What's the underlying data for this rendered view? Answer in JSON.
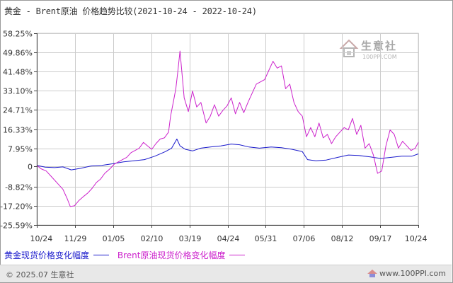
{
  "title": "黄金 - Brent原油 价格趋势比较(2021-10-24 - 2022-10-24)",
  "watermark": {
    "name": "生意社",
    "url": "100PPI.COM"
  },
  "legend": [
    {
      "label": "黄金现货价格变化幅度",
      "color": "#1a1acc"
    },
    {
      "label": "Brent原油现货价格变化幅度",
      "color": "#cc22cc"
    }
  ],
  "footer": {
    "copyright": "© 2025.07 生意社",
    "site": "www.100PPI.com"
  },
  "colors": {
    "gold": "#1a1acc",
    "brent": "#cc22cc",
    "grid": "#cccccc",
    "axis": "#444444"
  },
  "chart_data": {
    "type": "line",
    "x_start": "2021-10-24",
    "x_end": "2022-10-24",
    "x_tick_labels": [
      "10/24",
      "11/29",
      "01/05",
      "02/10",
      "03/19",
      "04/24",
      "05/31",
      "07/06",
      "08/12",
      "09/17",
      "10/24"
    ],
    "y_ticks": [
      58.25,
      49.86,
      41.48,
      33.1,
      24.71,
      16.33,
      7.95,
      0,
      -8.82,
      -17.2,
      -25.59
    ],
    "y_tick_labels": [
      "58.25%",
      "49.86%",
      "41.48%",
      "33.10%",
      "24.71%",
      "16.33%",
      "7.95%",
      "0",
      "-8.82%",
      "-17.20%",
      "-25.59%"
    ],
    "ylim": [
      -25.59,
      58.25
    ],
    "ylabel": "",
    "xlabel": "",
    "series": [
      {
        "name": "黄金现货价格变化幅度",
        "x": [
          "2021-10-24",
          "2021-11-01",
          "2021-11-10",
          "2021-11-18",
          "2021-11-26",
          "2021-12-05",
          "2021-12-15",
          "2021-12-25",
          "2022-01-05",
          "2022-01-15",
          "2022-01-25",
          "2022-02-04",
          "2022-02-14",
          "2022-02-24",
          "2022-03-02",
          "2022-03-07",
          "2022-03-10",
          "2022-03-15",
          "2022-03-22",
          "2022-03-30",
          "2022-04-08",
          "2022-04-18",
          "2022-04-28",
          "2022-05-06",
          "2022-05-15",
          "2022-05-25",
          "2022-06-05",
          "2022-06-15",
          "2022-06-25",
          "2022-07-05",
          "2022-07-10",
          "2022-07-18",
          "2022-07-28",
          "2022-08-08",
          "2022-08-18",
          "2022-08-28",
          "2022-09-08",
          "2022-09-18",
          "2022-09-28",
          "2022-10-08",
          "2022-10-18",
          "2022-10-24"
        ],
        "y": [
          0.5,
          -0.3,
          -0.5,
          -0.2,
          -1.5,
          -0.8,
          0.2,
          0.5,
          1.2,
          2.0,
          2.5,
          3.0,
          4.5,
          6.5,
          8.0,
          12.0,
          9.0,
          7.5,
          6.8,
          8.0,
          8.5,
          9.0,
          9.8,
          9.5,
          8.5,
          8.0,
          8.5,
          8.2,
          7.5,
          6.5,
          3.0,
          2.5,
          2.8,
          4.0,
          5.0,
          4.8,
          4.2,
          3.5,
          4.0,
          4.5,
          4.5,
          5.5
        ]
      },
      {
        "name": "Brent原油现货价格变化幅度",
        "x": [
          "2021-10-24",
          "2021-10-28",
          "2021-11-02",
          "2021-11-08",
          "2021-11-14",
          "2021-11-18",
          "2021-11-22",
          "2021-11-25",
          "2021-11-29",
          "2021-12-03",
          "2021-12-08",
          "2021-12-12",
          "2021-12-16",
          "2021-12-20",
          "2021-12-24",
          "2021-12-28",
          "2022-01-02",
          "2022-01-06",
          "2022-01-10",
          "2022-01-14",
          "2022-01-18",
          "2022-01-22",
          "2022-01-26",
          "2022-01-30",
          "2022-02-03",
          "2022-02-07",
          "2022-02-11",
          "2022-02-15",
          "2022-02-19",
          "2022-02-23",
          "2022-02-27",
          "2022-03-01",
          "2022-03-04",
          "2022-03-06",
          "2022-03-08",
          "2022-03-10",
          "2022-03-14",
          "2022-03-18",
          "2022-03-22",
          "2022-03-26",
          "2022-03-30",
          "2022-04-04",
          "2022-04-08",
          "2022-04-12",
          "2022-04-16",
          "2022-04-20",
          "2022-04-24",
          "2022-04-28",
          "2022-05-02",
          "2022-05-06",
          "2022-05-10",
          "2022-05-14",
          "2022-05-18",
          "2022-05-22",
          "2022-05-26",
          "2022-05-30",
          "2022-06-03",
          "2022-06-07",
          "2022-06-11",
          "2022-06-15",
          "2022-06-19",
          "2022-06-23",
          "2022-06-27",
          "2022-07-01",
          "2022-07-05",
          "2022-07-09",
          "2022-07-13",
          "2022-07-17",
          "2022-07-21",
          "2022-07-25",
          "2022-07-29",
          "2022-08-02",
          "2022-08-06",
          "2022-08-10",
          "2022-08-14",
          "2022-08-18",
          "2022-08-22",
          "2022-08-26",
          "2022-08-30",
          "2022-09-03",
          "2022-09-07",
          "2022-09-11",
          "2022-09-15",
          "2022-09-19",
          "2022-09-23",
          "2022-09-27",
          "2022-10-01",
          "2022-10-05",
          "2022-10-09",
          "2022-10-13",
          "2022-10-17",
          "2022-10-21",
          "2022-10-24"
        ],
        "y": [
          0.5,
          -1.0,
          -2.0,
          -5.0,
          -8.0,
          -10.0,
          -14.0,
          -17.5,
          -17.2,
          -15.0,
          -13.0,
          -11.5,
          -9.5,
          -7.0,
          -5.5,
          -3.0,
          -1.0,
          1.0,
          2.0,
          3.0,
          4.0,
          6.0,
          7.0,
          8.0,
          10.5,
          9.0,
          7.5,
          10.0,
          12.0,
          12.5,
          15.0,
          22.0,
          29.0,
          34.0,
          42.0,
          50.5,
          30.0,
          24.0,
          33.0,
          26.0,
          28.0,
          19.0,
          22.0,
          27.0,
          22.0,
          24.5,
          26.5,
          30.0,
          23.0,
          28.0,
          23.5,
          28.0,
          32.0,
          36.0,
          37.0,
          38.0,
          42.0,
          46.0,
          43.0,
          44.0,
          34.0,
          36.0,
          28.0,
          24.0,
          22.0,
          13.0,
          17.0,
          13.0,
          19.0,
          12.5,
          14.0,
          10.0,
          13.0,
          15.0,
          17.0,
          16.0,
          21.0,
          14.0,
          18.0,
          8.0,
          10.0,
          5.0,
          -3.0,
          -2.0,
          9.0,
          16.0,
          14.0,
          8.0,
          11.0,
          9.0,
          7.0,
          8.0,
          10.5
        ]
      }
    ],
    "grid": true,
    "legend_position": "bottom-left"
  }
}
